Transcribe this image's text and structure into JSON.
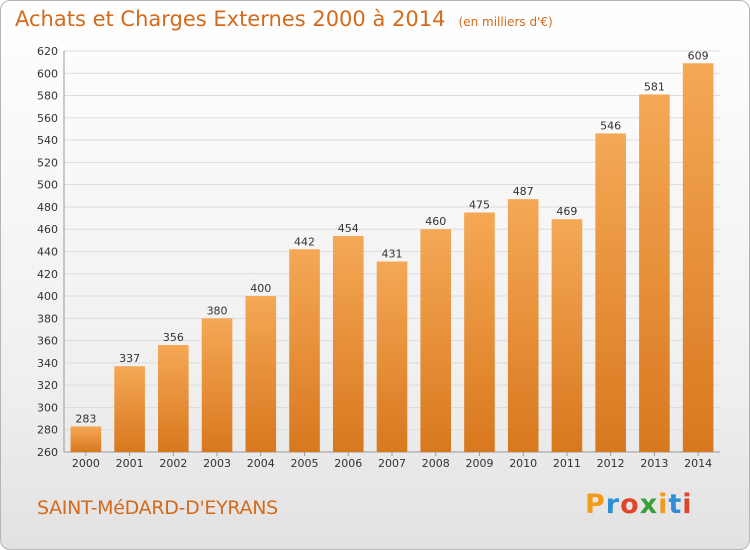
{
  "header": {
    "title": "Achats et Charges Externes 2000 à 2014",
    "unit": "(en milliers d'€)"
  },
  "footer": {
    "city": "SAINT-MéDARD-D'EYRANS",
    "logo": "Proxiti",
    "logo_colors": [
      "#f39a1a",
      "#2f8fd6",
      "#e0452a",
      "#3a9f3a",
      "#f39a1a",
      "#2f8fd6",
      "#e0452a"
    ]
  },
  "colors": {
    "title": "#d46a1a",
    "bar_light": "#f5a855",
    "bar_dark": "#d8781e",
    "grid": "#dcdcdc"
  },
  "chart_data": {
    "type": "bar",
    "title": "Achats et Charges Externes 2000 à 2014",
    "subtitle": "(en milliers d'€)",
    "xlabel": "",
    "ylabel": "",
    "categories": [
      "2000",
      "2001",
      "2002",
      "2003",
      "2004",
      "2005",
      "2006",
      "2007",
      "2008",
      "2009",
      "2010",
      "2011",
      "2012",
      "2013",
      "2014"
    ],
    "values": [
      283,
      337,
      356,
      380,
      400,
      442,
      454,
      431,
      460,
      475,
      487,
      469,
      546,
      581,
      609
    ],
    "ylim": [
      260,
      620
    ],
    "yticks": [
      260,
      280,
      300,
      320,
      340,
      360,
      380,
      400,
      420,
      440,
      460,
      480,
      500,
      520,
      540,
      560,
      580,
      600,
      620
    ],
    "grid": true,
    "legend": "none"
  }
}
